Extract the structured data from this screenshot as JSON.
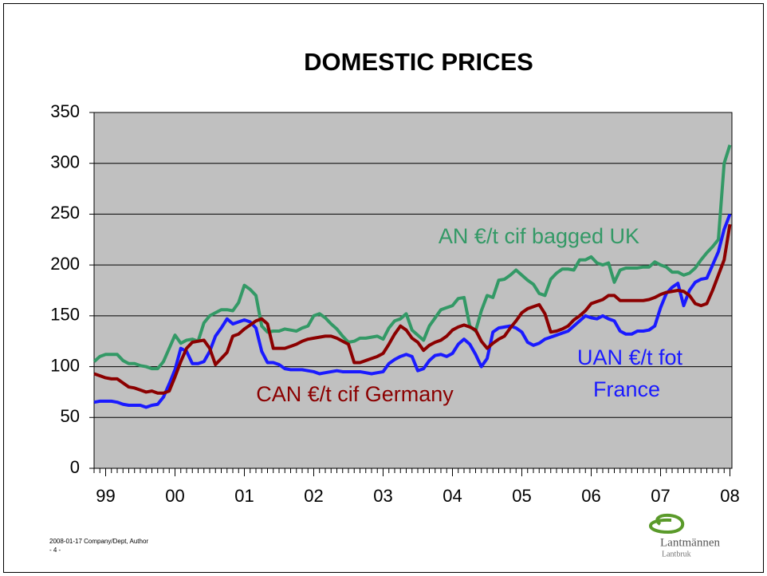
{
  "chart_data": {
    "type": "line",
    "title": "DOMESTIC PRICES",
    "categories": [
      null,
      null,
      "99",
      null,
      null,
      null,
      null,
      null,
      null,
      null,
      null,
      null,
      null,
      null,
      "00",
      null,
      null,
      null,
      null,
      null,
      null,
      null,
      null,
      null,
      null,
      null,
      "01",
      null,
      null,
      null,
      null,
      null,
      null,
      null,
      null,
      null,
      null,
      null,
      "02",
      null,
      null,
      null,
      null,
      null,
      null,
      null,
      null,
      null,
      null,
      null,
      "03",
      null,
      null,
      null,
      null,
      null,
      null,
      null,
      null,
      null,
      null,
      null,
      "04",
      null,
      null,
      null,
      null,
      null,
      null,
      null,
      null,
      null,
      null,
      null,
      "05",
      null,
      null,
      null,
      null,
      null,
      null,
      null,
      null,
      null,
      null,
      null,
      "06",
      null,
      null,
      null,
      null,
      null,
      null,
      null,
      null,
      null,
      null,
      null,
      "07",
      null,
      null,
      null,
      null,
      null,
      null,
      null,
      null,
      null,
      null,
      null,
      "08"
    ],
    "series": [
      {
        "color": "#339966",
        "values": [
          105,
          110,
          112,
          112,
          112,
          106,
          103,
          103,
          101,
          100,
          98,
          98,
          105,
          118,
          131,
          123,
          126,
          127,
          125,
          143,
          150,
          153,
          156,
          156,
          155,
          163,
          180,
          176,
          170,
          140,
          134,
          135,
          135,
          137,
          136,
          135,
          138,
          140,
          150,
          152,
          148,
          142,
          137,
          130,
          124,
          125,
          128,
          128,
          129,
          130,
          127,
          138,
          145,
          147,
          152,
          136,
          131,
          126,
          140,
          148,
          156,
          158,
          160,
          167,
          168,
          140,
          135,
          155,
          170,
          168,
          185,
          186,
          190,
          195,
          190,
          185,
          181,
          172,
          170,
          186,
          192,
          196,
          196,
          195,
          205,
          205,
          208,
          202,
          200,
          202,
          183,
          195,
          197,
          197,
          197,
          198,
          198,
          203,
          200,
          198,
          193,
          193,
          190,
          192,
          197,
          205,
          212,
          218,
          225,
          300,
          318
        ]
      },
      {
        "color": "#1a1aff",
        "values": [
          65,
          66,
          66,
          66,
          65,
          63,
          62,
          62,
          62,
          60,
          62,
          63,
          70,
          83,
          97,
          118,
          115,
          103,
          103,
          105,
          115,
          130,
          138,
          147,
          142,
          144,
          146,
          144,
          138,
          115,
          104,
          104,
          102,
          98,
          97,
          97,
          97,
          96,
          95,
          93,
          94,
          95,
          96,
          95,
          95,
          95,
          95,
          94,
          93,
          94,
          95,
          103,
          107,
          110,
          112,
          110,
          96,
          98,
          106,
          111,
          112,
          110,
          113,
          122,
          127,
          122,
          112,
          100,
          108,
          134,
          138,
          139,
          140,
          138,
          134,
          124,
          121,
          123,
          127,
          129,
          131,
          133,
          135,
          140,
          145,
          150,
          148,
          147,
          150,
          147,
          145,
          135,
          132,
          132,
          135,
          135,
          136,
          140,
          158,
          172,
          178,
          182,
          160,
          175,
          183,
          186,
          187,
          200,
          213,
          235,
          250
        ]
      },
      {
        "color": "#8b0000",
        "values": [
          93,
          91,
          89,
          88,
          88,
          84,
          80,
          79,
          77,
          75,
          76,
          74,
          74,
          76,
          90,
          105,
          118,
          124,
          125,
          126,
          118,
          102,
          108,
          114,
          130,
          132,
          137,
          141,
          145,
          147,
          142,
          118,
          118,
          118,
          120,
          122,
          125,
          127,
          128,
          129,
          130,
          130,
          128,
          125,
          122,
          104,
          104,
          106,
          108,
          110,
          113,
          122,
          132,
          140,
          136,
          128,
          124,
          116,
          121,
          124,
          126,
          130,
          136,
          139,
          141,
          139,
          136,
          125,
          118,
          123,
          127,
          130,
          138,
          145,
          153,
          157,
          159,
          161,
          152,
          134,
          135,
          137,
          140,
          146,
          150,
          155,
          162,
          164,
          166,
          170,
          170,
          165,
          165,
          165,
          165,
          165,
          166,
          168,
          171,
          173,
          174,
          175,
          174,
          170,
          162,
          160,
          162,
          175,
          190,
          205,
          240
        ]
      }
    ],
    "annotations": [
      {
        "text": "AN €/t cif bagged UK",
        "color": "#339966"
      },
      {
        "text": "UAN €/t fot",
        "color": "#1a1aff"
      },
      {
        "text": "France",
        "color": "#1a1aff"
      },
      {
        "text": "CAN €/t cif Germany",
        "color": "#8b0000"
      }
    ],
    "ylim": [
      0,
      350
    ],
    "yticks": [
      0,
      50,
      100,
      150,
      200,
      250,
      300,
      350
    ],
    "grid": true
  },
  "footer": {
    "date": "2008-01-17 Company/Dept, Author",
    "page": "- 4 -"
  },
  "logo": {
    "name": "Lantmännen",
    "sub": "Lantbruk"
  }
}
